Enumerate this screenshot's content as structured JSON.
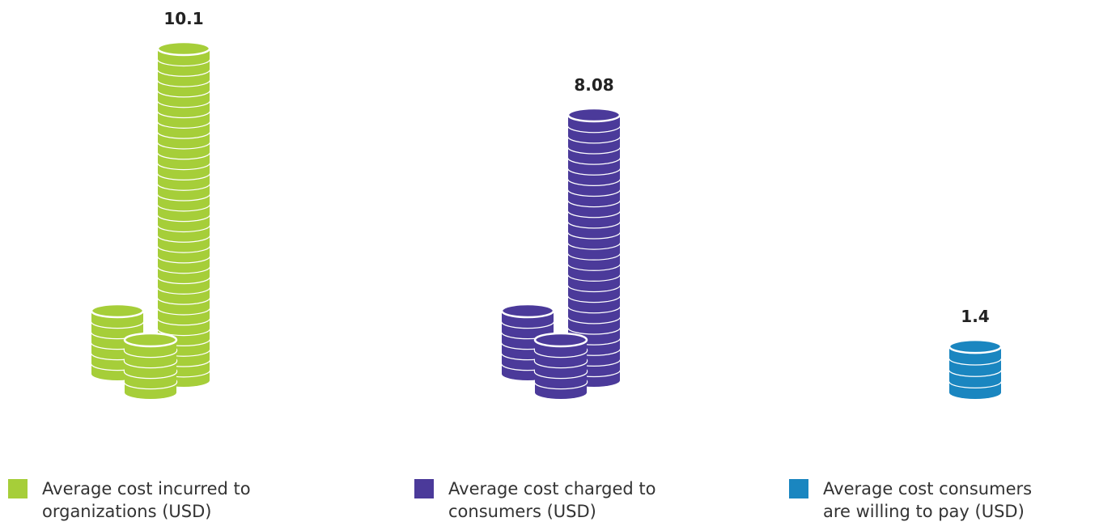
{
  "chart_data": {
    "type": "bar",
    "categories": [
      "Average cost incurred to organizations (USD)",
      "Average cost charged to consumers (USD)",
      "Average cost consumers are willing to pay (USD)"
    ],
    "values": [
      10.1,
      8.08,
      1.4
    ],
    "colors": [
      "#a6ce39",
      "#4b3a9a",
      "#1a86c0"
    ]
  }
}
